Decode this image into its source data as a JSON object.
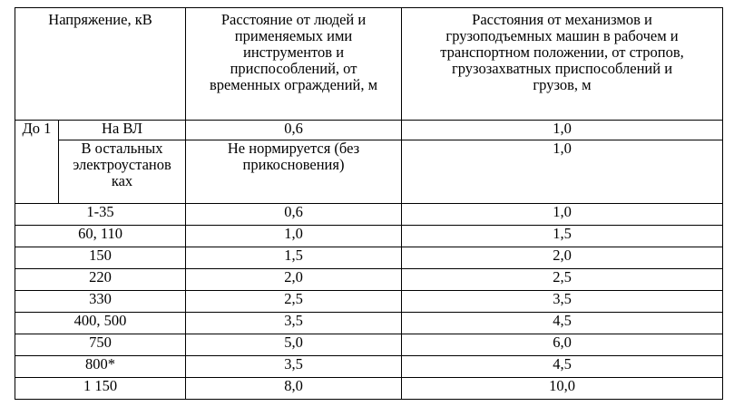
{
  "header": {
    "voltage": "Напряжение, кВ",
    "people_lines": [
      "Расстояние от людей и",
      "применяемых ими",
      "инструментов и",
      "приспособлений, от",
      "временных ограждений, м"
    ],
    "machines_lines": [
      "Расстояния от механизмов и",
      "грузоподъемных машин в рабочем и",
      "транспортном положении, от стропов,",
      "грузозахватных приспособлений и",
      "грузов, м"
    ]
  },
  "group": {
    "label": "До 1",
    "rows": [
      {
        "name_lines": [
          "На ВЛ"
        ],
        "people_lines": [
          "0,6"
        ],
        "machines": "1,0"
      },
      {
        "name_lines": [
          "В остальных",
          "электроустанов",
          "ках"
        ],
        "people_lines": [
          "Не нормируется (без",
          "прикосновения)"
        ],
        "machines": "1,0"
      }
    ]
  },
  "rows": [
    {
      "voltage": "1-35",
      "people": "0,6",
      "machines": "1,0"
    },
    {
      "voltage": "60, 110",
      "people": "1,0",
      "machines": "1,5"
    },
    {
      "voltage": "150",
      "people": "1,5",
      "machines": "2,0"
    },
    {
      "voltage": "220",
      "people": "2,0",
      "machines": "2,5"
    },
    {
      "voltage": "330",
      "people": "2,5",
      "machines": "3,5"
    },
    {
      "voltage": "400, 500",
      "people": "3,5",
      "machines": "4,5"
    },
    {
      "voltage": "750",
      "people": "5,0",
      "machines": "6,0"
    },
    {
      "voltage": "800*",
      "people": "3,5",
      "machines": "4,5"
    },
    {
      "voltage": "1 150",
      "people": "8,0",
      "machines": "10,0"
    }
  ]
}
